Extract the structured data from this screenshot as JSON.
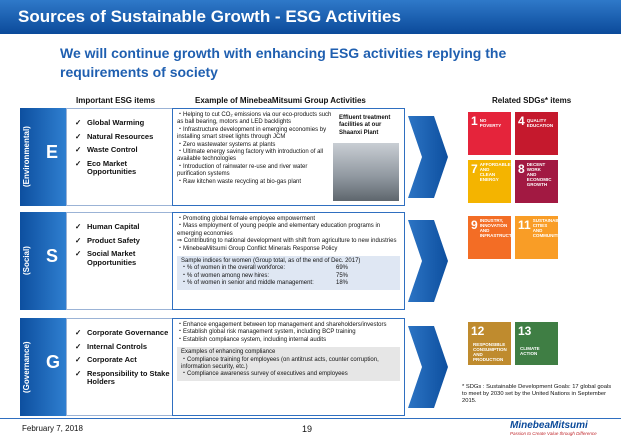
{
  "header": {
    "title": "Sources of Sustainable Growth - ESG Activities"
  },
  "subtitle": "We will continue growth with enhancing ESG activities replying the requirements of society",
  "column_headers": {
    "items": "Important ESG items",
    "activities": "Example of MinebeaMitsumi Group Activities",
    "sdgs": "Related SDGs* items"
  },
  "sections": [
    {
      "letter": "E",
      "label": "(Environmental)",
      "items": [
        "Global Warming",
        "Natural Resources",
        "Waste Control",
        "Eco Market Opportunities"
      ],
      "activities": [
        "・Helping to cut CO₂ emissions via our eco-products such as ball bearing, motors and LED backlights",
        "・Infrastructure development in emerging economies by installing smart street lights through JCM",
        "・Zero wastewater systems at plants",
        "・Ultimate energy saving factory with introduction of all available technologies",
        "・Introduction of rainwater re-use and river water purification systems",
        "・Raw kitchen waste recycling at bio-gas plant"
      ],
      "photo_caption": "Effluent treatment facilities at our Shaanxi Plant",
      "sdgs": [
        {
          "number": "1",
          "label": "NO POVERTY"
        },
        {
          "number": "4",
          "label": "QUALITY EDUCATION"
        },
        {
          "number": "7",
          "label": "AFFORDABLE AND CLEAN ENERGY"
        },
        {
          "number": "8",
          "label": "DECENT WORK AND ECONOMIC GROWTH"
        }
      ]
    },
    {
      "letter": "S",
      "label": "(Social)",
      "items": [
        "Human Capital",
        "Product Safety",
        "Social Market Opportunities"
      ],
      "activities": [
        "・Promoting global female employee empowerment",
        "・Mass employment of young people and elementary education programs in emerging economies",
        "⇒ Contributing to national development with shift from agriculture to new industries",
        "・MinebeaMitsumi Group Conflict Minerals Response Policy"
      ],
      "sample": {
        "title": "Sample indices for women (Group total, as of the end of Dec. 2017)",
        "rows": [
          {
            "label": "・% of women in the overall workforce:",
            "value": "69%"
          },
          {
            "label": "・% of women among new hires:",
            "value": "75%"
          },
          {
            "label": "・% of women in senior and middle management:",
            "value": "18%"
          }
        ]
      },
      "sdgs": [
        {
          "number": "9",
          "label": "INDUSTRY, INNOVATION AND INFRASTRUCTURE"
        },
        {
          "number": "11",
          "label": "SUSTAINABLE CITIES AND COMMUNITIES"
        }
      ]
    },
    {
      "letter": "G",
      "label": "(Governance)",
      "items": [
        "Corporate Governance",
        "Internal Controls",
        "Corporate Act",
        "Responsibility to Stake Holders"
      ],
      "activities": [
        "・Enhance engagement between top management and shareholders/investors",
        "・Establish global risk management system, including BCP training",
        "・Establish compliance system, including internal audits"
      ],
      "box": {
        "title": "Examples of enhancing compliance",
        "lines": [
          "・Compliance training for employees (on antitrust acts, counter corruption, information security, etc.)",
          "・Compliance awareness survey of executives and employees"
        ]
      },
      "sdgs": [
        {
          "number": "12",
          "label": "RESPONSIBLE CONSUMPTION AND PRODUCTION"
        },
        {
          "number": "13",
          "label": "CLIMATE ACTION"
        }
      ]
    }
  ],
  "footnote": "* SDGs : Sustainable Development Goals: 17 global goals to meet by 2030 set by the United Nations in September 2015.",
  "footer": {
    "date": "February 7, 2018",
    "page": "19",
    "logo": "MinebeaMitsumi",
    "tagline": "Passion to Create Value through Difference"
  }
}
